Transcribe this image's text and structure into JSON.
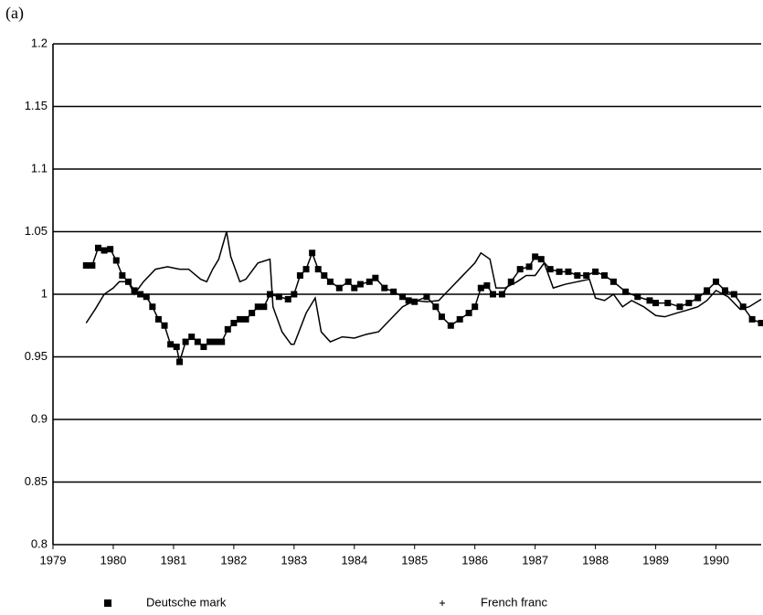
{
  "chart_data": {
    "type": "line",
    "panel_label": "(a)",
    "xlim": [
      1979,
      1990.75
    ],
    "xticks": [
      1979,
      1980,
      1981,
      1982,
      1983,
      1984,
      1985,
      1986,
      1987,
      1988,
      1989,
      1990
    ],
    "ylim": [
      0.8,
      1.2
    ],
    "yticks": [
      0.8,
      0.85,
      0.9,
      0.95,
      1,
      1.05,
      1.1,
      1.15,
      1.2
    ],
    "grid": true,
    "legend": "bottom",
    "series": [
      {
        "name": "Deutsche mark",
        "color": "#000000",
        "marker": "square",
        "x": [
          1979.55,
          1979.65,
          1979.75,
          1979.85,
          1979.95,
          1980.05,
          1980.15,
          1980.25,
          1980.35,
          1980.45,
          1980.55,
          1980.65,
          1980.75,
          1980.85,
          1980.95,
          1981.05,
          1981.1,
          1981.2,
          1981.3,
          1981.4,
          1981.5,
          1981.6,
          1981.7,
          1981.8,
          1981.9,
          1982.0,
          1982.1,
          1982.2,
          1982.3,
          1982.4,
          1982.5,
          1982.6,
          1982.75,
          1982.9,
          1983.0,
          1983.1,
          1983.2,
          1983.3,
          1983.4,
          1983.5,
          1983.6,
          1983.75,
          1983.9,
          1984.0,
          1984.1,
          1984.25,
          1984.35,
          1984.5,
          1984.65,
          1984.8,
          1984.9,
          1985.0,
          1985.2,
          1985.35,
          1985.45,
          1985.6,
          1985.75,
          1985.9,
          1986.0,
          1986.1,
          1986.2,
          1986.3,
          1986.45,
          1986.6,
          1986.75,
          1986.9,
          1987.0,
          1987.1,
          1987.25,
          1987.4,
          1987.55,
          1987.7,
          1987.85,
          1988.0,
          1988.15,
          1988.3,
          1988.5,
          1988.7,
          1988.9,
          1989.0,
          1989.2,
          1989.4,
          1989.55,
          1989.7,
          1989.85,
          1990.0,
          1990.15,
          1990.3,
          1990.45,
          1990.6,
          1990.75
        ],
        "values": [
          1.023,
          1.023,
          1.037,
          1.035,
          1.036,
          1.027,
          1.015,
          1.01,
          1.003,
          1.0,
          0.998,
          0.99,
          0.98,
          0.975,
          0.96,
          0.958,
          0.946,
          0.962,
          0.966,
          0.962,
          0.958,
          0.962,
          0.962,
          0.962,
          0.972,
          0.977,
          0.98,
          0.98,
          0.985,
          0.99,
          0.99,
          1.0,
          0.998,
          0.996,
          1.0,
          1.015,
          1.02,
          1.033,
          1.02,
          1.015,
          1.01,
          1.005,
          1.01,
          1.005,
          1.008,
          1.01,
          1.013,
          1.005,
          1.002,
          0.998,
          0.995,
          0.994,
          0.998,
          0.99,
          0.982,
          0.975,
          0.98,
          0.985,
          0.99,
          1.005,
          1.007,
          1.0,
          1.0,
          1.01,
          1.02,
          1.022,
          1.03,
          1.028,
          1.02,
          1.018,
          1.018,
          1.015,
          1.015,
          1.018,
          1.015,
          1.01,
          1.002,
          0.998,
          0.995,
          0.993,
          0.993,
          0.99,
          0.993,
          0.997,
          1.003,
          1.01,
          1.003,
          1.0,
          0.99,
          0.98,
          0.977
        ]
      },
      {
        "name": "French franc",
        "color": "#000000",
        "marker": "plus",
        "x": [
          1979.55,
          1979.7,
          1979.85,
          1980.0,
          1980.1,
          1980.25,
          1980.35,
          1980.5,
          1980.7,
          1980.9,
          1981.1,
          1981.25,
          1981.45,
          1981.55,
          1981.65,
          1981.75,
          1981.88,
          1981.95,
          1982.1,
          1982.2,
          1982.4,
          1982.6,
          1982.65,
          1982.8,
          1982.95,
          1983.0,
          1983.2,
          1983.35,
          1983.45,
          1983.6,
          1983.8,
          1984.0,
          1984.2,
          1984.4,
          1984.6,
          1984.8,
          1985.0,
          1985.2,
          1985.4,
          1985.6,
          1985.8,
          1986.0,
          1986.1,
          1986.25,
          1986.35,
          1986.5,
          1986.7,
          1986.85,
          1987.0,
          1987.15,
          1987.3,
          1987.5,
          1987.7,
          1987.9,
          1988.0,
          1988.15,
          1988.3,
          1988.45,
          1988.6,
          1988.8,
          1989.0,
          1989.15,
          1989.35,
          1989.5,
          1989.7,
          1989.85,
          1990.0,
          1990.2,
          1990.4,
          1990.55,
          1990.75
        ],
        "values": [
          0.977,
          0.988,
          1.0,
          1.005,
          1.01,
          1.01,
          1.0,
          1.01,
          1.02,
          1.022,
          1.02,
          1.02,
          1.012,
          1.01,
          1.02,
          1.028,
          1.05,
          1.03,
          1.01,
          1.012,
          1.025,
          1.028,
          0.99,
          0.97,
          0.96,
          0.96,
          0.985,
          0.997,
          0.97,
          0.962,
          0.966,
          0.965,
          0.968,
          0.97,
          0.98,
          0.99,
          0.995,
          0.994,
          0.995,
          1.005,
          1.015,
          1.025,
          1.033,
          1.028,
          1.005,
          1.005,
          1.01,
          1.015,
          1.015,
          1.025,
          1.005,
          1.008,
          1.01,
          1.012,
          0.997,
          0.995,
          1.0,
          0.99,
          0.995,
          0.99,
          0.983,
          0.982,
          0.985,
          0.987,
          0.99,
          0.995,
          1.003,
          0.998,
          0.988,
          0.99,
          0.996
        ]
      }
    ]
  }
}
